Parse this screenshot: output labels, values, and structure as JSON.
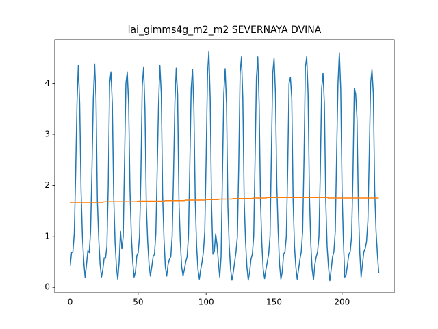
{
  "chart_data": {
    "type": "line",
    "title": "lai_gimms4g_m2_m2 SEVERNAYA DVINA",
    "x": [
      0,
      1,
      2,
      3,
      4,
      5,
      6,
      7,
      8,
      9,
      10,
      11,
      12,
      13,
      14,
      15,
      16,
      17,
      18,
      19,
      20,
      21,
      22,
      23,
      24,
      25,
      26,
      27,
      28,
      29,
      30,
      31,
      32,
      33,
      34,
      35,
      36,
      37,
      38,
      39,
      40,
      41,
      42,
      43,
      44,
      45,
      46,
      47,
      48,
      49,
      50,
      51,
      52,
      53,
      54,
      55,
      56,
      57,
      58,
      59,
      60,
      61,
      62,
      63,
      64,
      65,
      66,
      67,
      68,
      69,
      70,
      71,
      72,
      73,
      74,
      75,
      76,
      77,
      78,
      79,
      80,
      81,
      82,
      83,
      84,
      85,
      86,
      87,
      88,
      89,
      90,
      91,
      92,
      93,
      94,
      95,
      96,
      97,
      98,
      99,
      100,
      101,
      102,
      103,
      104,
      105,
      106,
      107,
      108,
      109,
      110,
      111,
      112,
      113,
      114,
      115,
      116,
      117,
      118,
      119,
      120,
      121,
      122,
      123,
      124,
      125,
      126,
      127,
      128,
      129,
      130,
      131,
      132,
      133,
      134,
      135,
      136,
      137,
      138,
      139,
      140,
      141,
      142,
      143,
      144,
      145,
      146,
      147,
      148,
      149,
      150,
      151,
      152,
      153,
      154,
      155,
      156,
      157,
      158,
      159,
      160,
      161,
      162,
      163,
      164,
      165,
      166,
      167,
      168,
      169,
      170,
      171,
      172,
      173,
      174,
      175,
      176,
      177,
      178,
      179,
      180,
      181,
      182,
      183,
      184,
      185,
      186,
      187,
      188,
      189,
      190,
      191,
      192,
      193,
      194,
      195,
      196,
      197,
      198,
      199,
      200,
      201,
      202,
      203,
      204,
      205,
      206,
      207,
      208,
      209,
      210,
      211,
      212,
      213,
      214,
      215,
      216,
      217,
      218,
      219,
      220,
      221,
      222,
      223,
      224,
      225,
      226,
      227
    ],
    "series": [
      {
        "color": "#1f77b4",
        "values": [
          0.42,
          0.68,
          0.7,
          1.05,
          2.2,
          3.6,
          4.35,
          3.6,
          1.9,
          1.0,
          0.5,
          0.19,
          0.45,
          0.72,
          0.68,
          1.1,
          2.3,
          3.7,
          4.38,
          3.7,
          1.7,
          0.95,
          0.45,
          0.2,
          0.35,
          0.58,
          0.57,
          0.8,
          2.0,
          4.0,
          4.22,
          3.6,
          1.8,
          0.9,
          0.4,
          0.16,
          0.5,
          1.1,
          0.75,
          1.0,
          2.5,
          4.0,
          4.22,
          3.6,
          1.9,
          1.0,
          0.5,
          0.2,
          0.3,
          0.62,
          0.68,
          1.0,
          2.2,
          3.95,
          4.31,
          3.5,
          1.6,
          0.9,
          0.45,
          0.22,
          0.4,
          0.6,
          0.65,
          1.05,
          2.3,
          3.6,
          4.35,
          3.8,
          1.8,
          0.95,
          0.4,
          0.22,
          0.45,
          0.55,
          0.6,
          1.0,
          2.2,
          3.6,
          4.3,
          3.8,
          1.7,
          0.9,
          0.4,
          0.22,
          0.35,
          0.5,
          0.6,
          1.0,
          2.4,
          3.9,
          4.28,
          3.5,
          1.7,
          0.8,
          0.35,
          0.16,
          0.35,
          0.5,
          0.7,
          1.1,
          2.5,
          4.15,
          4.63,
          3.7,
          1.6,
          0.65,
          0.7,
          1.05,
          0.85,
          0.5,
          0.2,
          0.6,
          2.2,
          3.8,
          4.29,
          3.6,
          1.6,
          0.8,
          0.35,
          0.14,
          0.3,
          0.5,
          0.7,
          1.0,
          2.4,
          4.2,
          4.52,
          3.7,
          1.7,
          0.9,
          0.4,
          0.14,
          0.3,
          0.55,
          0.65,
          1.0,
          2.5,
          4.1,
          4.52,
          3.6,
          1.7,
          0.85,
          0.35,
          0.17,
          0.35,
          0.5,
          0.65,
          1.0,
          2.6,
          4.2,
          4.49,
          3.8,
          2.0,
          1.1,
          0.45,
          0.16,
          0.3,
          0.65,
          0.7,
          1.0,
          2.3,
          4.0,
          4.12,
          3.7,
          1.7,
          0.8,
          0.4,
          0.16,
          0.35,
          0.55,
          0.7,
          1.1,
          2.5,
          4.3,
          4.53,
          3.8,
          1.8,
          0.85,
          0.35,
          0.15,
          0.45,
          0.6,
          0.7,
          1.0,
          2.3,
          3.9,
          4.2,
          3.6,
          1.7,
          0.8,
          0.4,
          0.13,
          0.35,
          0.6,
          0.7,
          1.1,
          2.6,
          4.0,
          4.6,
          3.9,
          1.9,
          0.9,
          0.2,
          0.25,
          0.45,
          0.65,
          0.7,
          1.0,
          2.2,
          3.9,
          3.8,
          3.3,
          1.6,
          0.7,
          0.2,
          0.45,
          0.7,
          0.75,
          0.9,
          1.3,
          2.6,
          4.0,
          4.27,
          3.8,
          1.9,
          1.1,
          0.65,
          0.28
        ]
      },
      {
        "color": "#ff7f0e",
        "values": [
          1.67,
          1.67,
          1.67,
          1.67,
          1.67,
          1.67,
          1.67,
          1.67,
          1.67,
          1.67,
          1.67,
          1.67,
          1.67,
          1.67,
          1.67,
          1.67,
          1.67,
          1.67,
          1.67,
          1.67,
          1.67,
          1.67,
          1.67,
          1.67,
          1.67,
          1.68,
          1.68,
          1.68,
          1.68,
          1.68,
          1.68,
          1.68,
          1.68,
          1.68,
          1.68,
          1.68,
          1.68,
          1.68,
          1.68,
          1.68,
          1.68,
          1.68,
          1.68,
          1.68,
          1.68,
          1.68,
          1.68,
          1.68,
          1.68,
          1.68,
          1.69,
          1.69,
          1.69,
          1.69,
          1.69,
          1.69,
          1.69,
          1.69,
          1.69,
          1.69,
          1.69,
          1.69,
          1.69,
          1.69,
          1.69,
          1.69,
          1.69,
          1.69,
          1.69,
          1.69,
          1.7,
          1.7,
          1.7,
          1.7,
          1.7,
          1.7,
          1.7,
          1.7,
          1.7,
          1.7,
          1.7,
          1.7,
          1.7,
          1.7,
          1.7,
          1.71,
          1.71,
          1.71,
          1.71,
          1.71,
          1.71,
          1.71,
          1.71,
          1.71,
          1.71,
          1.71,
          1.71,
          1.71,
          1.71,
          1.71,
          1.72,
          1.72,
          1.72,
          1.72,
          1.72,
          1.72,
          1.72,
          1.72,
          1.72,
          1.72,
          1.73,
          1.73,
          1.73,
          1.73,
          1.73,
          1.73,
          1.73,
          1.73,
          1.73,
          1.73,
          1.74,
          1.74,
          1.74,
          1.74,
          1.74,
          1.74,
          1.74,
          1.74,
          1.74,
          1.74,
          1.74,
          1.74,
          1.74,
          1.74,
          1.74,
          1.75,
          1.75,
          1.75,
          1.75,
          1.75,
          1.75,
          1.75,
          1.75,
          1.75,
          1.75,
          1.76,
          1.76,
          1.76,
          1.76,
          1.76,
          1.76,
          1.76,
          1.76,
          1.76,
          1.76,
          1.76,
          1.76,
          1.76,
          1.76,
          1.76,
          1.76,
          1.76,
          1.76,
          1.76,
          1.76,
          1.76,
          1.76,
          1.76,
          1.76,
          1.76,
          1.76,
          1.76,
          1.76,
          1.76,
          1.76,
          1.76,
          1.76,
          1.76,
          1.76,
          1.76,
          1.76,
          1.76,
          1.76,
          1.76,
          1.76,
          1.76,
          1.76,
          1.76,
          1.76,
          1.76,
          1.75,
          1.75,
          1.75,
          1.75,
          1.75,
          1.75,
          1.75,
          1.75,
          1.75,
          1.75,
          1.75,
          1.75,
          1.75,
          1.75,
          1.75,
          1.75,
          1.75,
          1.75,
          1.75,
          1.75,
          1.75,
          1.75,
          1.75,
          1.75,
          1.75,
          1.75,
          1.75,
          1.75,
          1.75,
          1.75,
          1.75,
          1.75,
          1.75,
          1.75,
          1.75,
          1.75,
          1.75,
          1.75
        ]
      }
    ],
    "xlim": [
      -11.35,
      238.35
    ],
    "xticks": [
      0,
      50,
      100,
      150,
      200
    ],
    "ylim": [
      -0.105,
      4.855
    ],
    "yticks": [
      0,
      1,
      2,
      3,
      4
    ],
    "grid": false
  }
}
